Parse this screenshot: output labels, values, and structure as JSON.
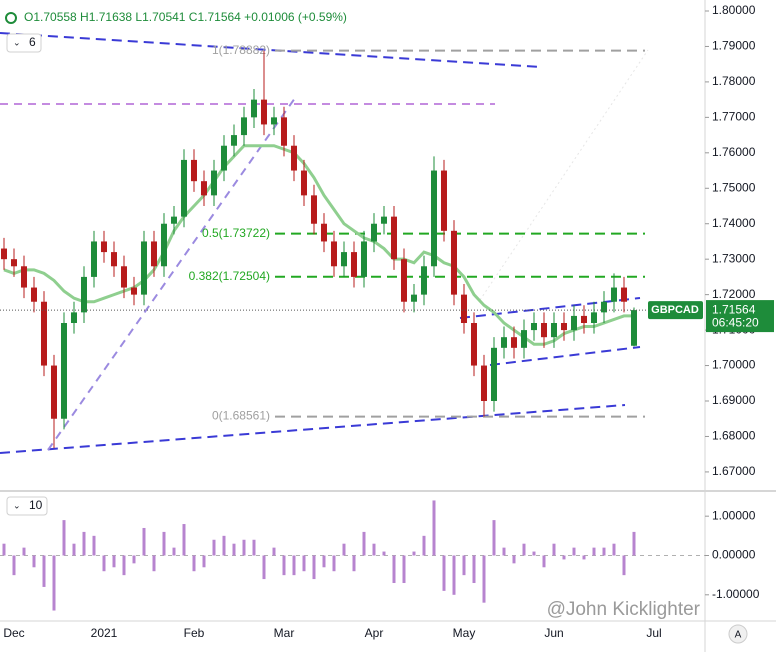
{
  "chart_data": [
    {
      "type": "candlestick",
      "header": "O1.70558 H1.71638 L1.70541 C1.71564 +0.01006 (+0.59%)",
      "pane_label": "6",
      "symbol": "GBPCAD",
      "last_price_label": "1.71564",
      "countdown": "06:45:20",
      "watermark": "@John Kicklighter",
      "corner": "A",
      "categories": [
        null,
        "Dec",
        null,
        null,
        null,
        null,
        null,
        null,
        null,
        null,
        "2021",
        null,
        null,
        null,
        null,
        null,
        null,
        null,
        null,
        "Feb",
        null,
        null,
        null,
        null,
        null,
        null,
        null,
        null,
        "Mar",
        null,
        null,
        null,
        null,
        null,
        null,
        null,
        null,
        "Apr",
        null,
        null,
        null,
        null,
        null,
        null,
        null,
        null,
        "May",
        null,
        null,
        null,
        null,
        null,
        null,
        null,
        null,
        "Jun",
        null,
        null,
        null,
        null,
        null,
        null,
        null,
        null,
        null,
        "Jul"
      ],
      "open": [
        1.733,
        1.73,
        1.728,
        1.722,
        1.718,
        1.7,
        1.685,
        1.712,
        1.715,
        1.725,
        1.735,
        1.732,
        1.728,
        1.722,
        1.72,
        1.735,
        1.728,
        1.74,
        1.742,
        1.758,
        1.752,
        1.748,
        1.755,
        1.762,
        1.765,
        1.77,
        1.775,
        1.768,
        1.77,
        1.762,
        1.755,
        1.748,
        1.74,
        1.735,
        1.728,
        1.732,
        1.725,
        1.735,
        1.74,
        1.742,
        1.73,
        1.718,
        1.72,
        1.728,
        1.755,
        1.738,
        1.72,
        1.712,
        1.7,
        1.69,
        1.705,
        1.708,
        1.705,
        1.71,
        1.712,
        1.708,
        1.712,
        1.71,
        1.714,
        1.712,
        1.715,
        1.718,
        1.722,
        1.70558,
        null,
        null
      ],
      "high": [
        1.736,
        1.733,
        1.731,
        1.725,
        1.721,
        1.703,
        1.715,
        1.718,
        1.728,
        1.738,
        1.738,
        1.735,
        1.731,
        1.725,
        1.738,
        1.738,
        1.743,
        1.745,
        1.761,
        1.761,
        1.755,
        1.758,
        1.765,
        1.768,
        1.773,
        1.778,
        1.7888,
        1.773,
        1.773,
        1.765,
        1.758,
        1.751,
        1.743,
        1.738,
        1.735,
        1.735,
        1.738,
        1.743,
        1.745,
        1.745,
        1.733,
        1.723,
        1.731,
        1.759,
        1.758,
        1.741,
        1.723,
        1.715,
        1.703,
        1.708,
        1.711,
        1.711,
        1.713,
        1.715,
        1.715,
        1.715,
        1.715,
        1.717,
        1.717,
        1.718,
        1.721,
        1.726,
        1.725,
        1.71638,
        null,
        null
      ],
      "low": [
        1.727,
        1.725,
        1.719,
        1.715,
        1.697,
        1.6767,
        1.682,
        1.709,
        1.712,
        1.722,
        1.729,
        1.725,
        1.719,
        1.717,
        1.717,
        1.725,
        1.725,
        1.737,
        1.739,
        1.749,
        1.745,
        1.745,
        1.752,
        1.759,
        1.762,
        1.767,
        1.765,
        1.765,
        1.759,
        1.752,
        1.745,
        1.737,
        1.732,
        1.725,
        1.725,
        1.722,
        1.722,
        1.732,
        1.737,
        1.727,
        1.715,
        1.715,
        1.717,
        1.725,
        1.735,
        1.717,
        1.709,
        1.697,
        1.6856,
        1.687,
        1.702,
        1.702,
        1.702,
        1.707,
        1.705,
        1.705,
        1.707,
        1.707,
        1.709,
        1.709,
        1.712,
        1.715,
        1.715,
        1.70541,
        null,
        null
      ],
      "close": [
        1.73,
        1.728,
        1.722,
        1.718,
        1.7,
        1.685,
        1.712,
        1.715,
        1.725,
        1.735,
        1.732,
        1.728,
        1.722,
        1.72,
        1.735,
        1.728,
        1.74,
        1.742,
        1.758,
        1.752,
        1.748,
        1.755,
        1.762,
        1.765,
        1.77,
        1.775,
        1.768,
        1.77,
        1.762,
        1.755,
        1.748,
        1.74,
        1.735,
        1.728,
        1.732,
        1.725,
        1.735,
        1.74,
        1.742,
        1.73,
        1.718,
        1.72,
        1.728,
        1.755,
        1.738,
        1.72,
        1.712,
        1.7,
        1.69,
        1.705,
        1.708,
        1.705,
        1.71,
        1.712,
        1.708,
        1.712,
        1.71,
        1.714,
        1.712,
        1.715,
        1.718,
        1.722,
        1.718,
        1.71564,
        null,
        null
      ],
      "up_color": "#1e8c3a",
      "down_color": "#b71c1c",
      "moving_average": {
        "color": "#8fcf8f",
        "values": [
          1.727,
          1.726,
          1.727,
          1.727,
          1.726,
          1.724,
          1.721,
          1.719,
          1.718,
          1.718,
          1.719,
          1.72,
          1.721,
          1.722,
          1.724,
          1.727,
          1.732,
          1.738,
          1.742,
          1.745,
          1.748,
          1.752,
          1.756,
          1.759,
          1.762,
          1.762,
          1.762,
          1.762,
          1.761,
          1.76,
          1.757,
          1.753,
          1.748,
          1.744,
          1.74,
          1.738,
          1.736,
          1.735,
          1.733,
          1.73,
          1.73,
          1.729,
          1.732,
          1.731,
          1.729,
          1.728,
          1.725,
          1.72,
          1.717,
          1.715,
          1.712,
          1.71,
          1.708,
          1.706,
          1.706,
          1.707,
          1.709,
          1.71,
          1.711,
          1.711,
          1.712,
          1.713,
          1.714,
          1.714,
          null,
          null
        ]
      },
      "fib_levels": [
        {
          "value": 1.78882,
          "label": "1(1.78882)",
          "color": "#a0a0a0"
        },
        {
          "value": 1.73722,
          "label": "0.5(1.73722)",
          "color": "#22a822"
        },
        {
          "value": 1.72504,
          "label": "0.382(1.72504)",
          "color": "#22a822"
        },
        {
          "value": 1.68561,
          "label": "0(1.68561)",
          "color": "#a0a0a0"
        }
      ],
      "ylim": [
        1.6649,
        1.8031
      ],
      "yticks": [
        {
          "value": 1.8,
          "label": "1.80000"
        },
        {
          "value": 1.79,
          "label": "1.79000"
        },
        {
          "value": 1.78,
          "label": "1.78000"
        },
        {
          "value": 1.77,
          "label": "1.77000"
        },
        {
          "value": 1.76,
          "label": "1.76000"
        },
        {
          "value": 1.75,
          "label": "1.75000"
        },
        {
          "value": 1.74,
          "label": "1.74000"
        },
        {
          "value": 1.73,
          "label": "1.73000"
        },
        {
          "value": 1.72,
          "label": "1.72000"
        },
        {
          "value": 1.71,
          "label": "1.71000"
        },
        {
          "value": 1.7,
          "label": "1.70000"
        },
        {
          "value": 1.69,
          "label": "1.69000"
        },
        {
          "value": 1.68,
          "label": "1.68000"
        },
        {
          "value": 1.67,
          "label": "1.67000"
        }
      ]
    },
    {
      "type": "bar",
      "pane_label": "10",
      "color": "#b784cf",
      "values": [
        0.3,
        -0.5,
        0.2,
        -0.3,
        -0.8,
        -1.4,
        0.9,
        0.3,
        0.6,
        0.5,
        -0.4,
        -0.3,
        -0.5,
        -0.2,
        0.7,
        -0.4,
        0.6,
        0.2,
        0.8,
        -0.4,
        -0.3,
        0.4,
        0.5,
        0.3,
        0.4,
        0.4,
        -0.6,
        0.2,
        -0.5,
        -0.5,
        -0.4,
        -0.6,
        -0.3,
        -0.4,
        0.3,
        -0.4,
        0.6,
        0.3,
        0.1,
        -0.7,
        -0.7,
        0.1,
        0.5,
        1.4,
        -0.9,
        -1.0,
        -0.5,
        -0.7,
        -1.2,
        0.9,
        0.2,
        -0.2,
        0.3,
        0.1,
        -0.3,
        0.3,
        -0.1,
        0.2,
        -0.1,
        0.2,
        0.2,
        0.3,
        -0.5,
        0.6,
        null,
        null
      ],
      "ylim": [
        -1.641,
        1.615
      ],
      "yticks": [
        {
          "value": 1,
          "label": "1.00000"
        },
        {
          "value": 0,
          "label": "0.00000"
        },
        {
          "value": -1,
          "label": "-1.00000"
        }
      ]
    }
  ]
}
